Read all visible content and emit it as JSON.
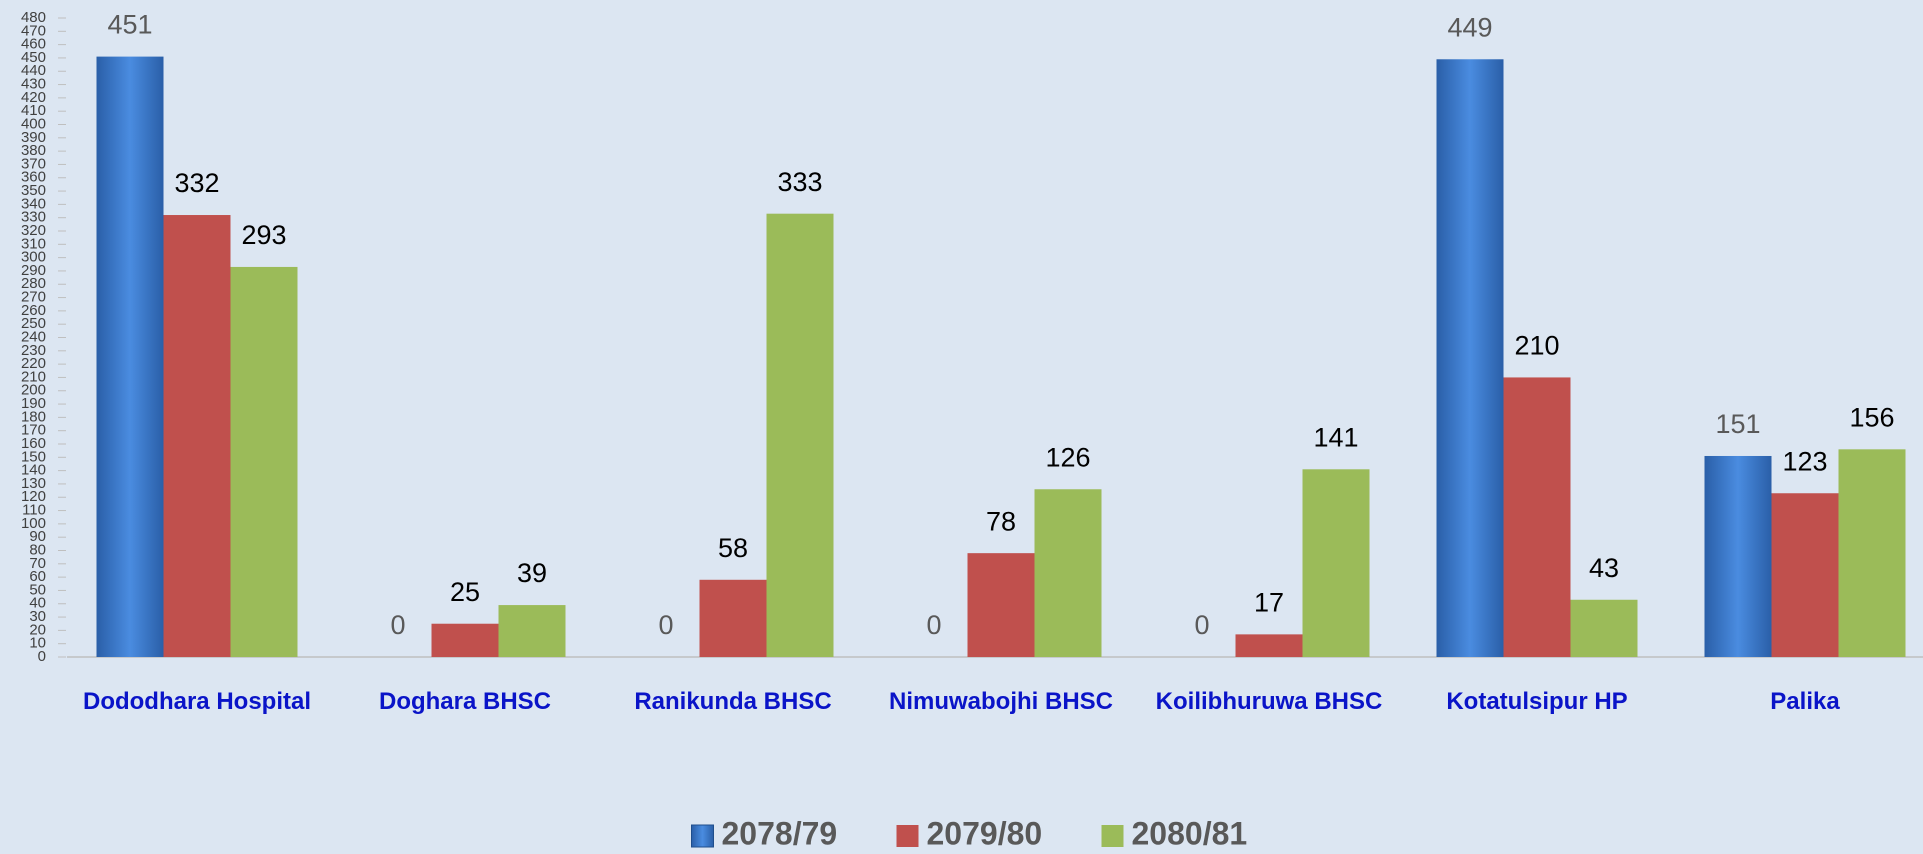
{
  "chart_data": {
    "type": "bar",
    "categories": [
      "Dododhara Hospital",
      "Doghara BHSC",
      "Ranikunda BHSC",
      "Nimuwabojhi BHSC",
      "Koilibhuruwa BHSC",
      "Kotatulsipur HP",
      "Palika"
    ],
    "series": [
      {
        "name": "2078/79",
        "color": "#3a7bd5",
        "values": [
          451,
          0,
          0,
          0,
          0,
          449,
          151
        ]
      },
      {
        "name": "2079/80",
        "color": "#c0504d",
        "values": [
          332,
          25,
          58,
          78,
          17,
          210,
          123
        ]
      },
      {
        "name": "2080/81",
        "color": "#9bbb59",
        "values": [
          293,
          39,
          333,
          126,
          141,
          43,
          156
        ]
      }
    ],
    "ylim": [
      0,
      480
    ],
    "yticks": [
      0,
      10,
      20,
      30,
      40,
      50,
      60,
      70,
      80,
      90,
      100,
      110,
      120,
      130,
      140,
      150,
      160,
      170,
      180,
      190,
      200,
      210,
      220,
      230,
      240,
      250,
      260,
      270,
      280,
      290,
      300,
      310,
      320,
      330,
      340,
      350,
      360,
      370,
      380,
      390,
      400,
      410,
      420,
      430,
      440,
      450,
      460,
      470,
      480
    ],
    "legend": "bottom"
  }
}
